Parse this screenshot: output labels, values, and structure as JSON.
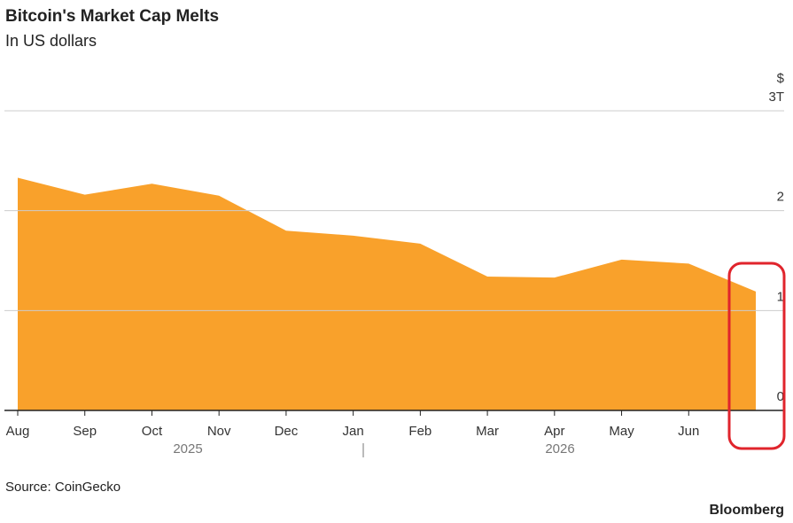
{
  "chart_data": {
    "type": "area",
    "title": "Bitcoin's Market Cap Melts",
    "subtitle": "In US dollars",
    "y_unit": "$",
    "x": [
      "2025-08",
      "2025-09",
      "2025-10",
      "2025-11",
      "2025-12",
      "2026-01",
      "2026-02",
      "2026-03",
      "2026-04",
      "2026-05",
      "2026-06",
      "2026-07"
    ],
    "series": [
      {
        "name": "Market cap",
        "color": "#f9a12b",
        "values": [
          2.33,
          2.16,
          2.27,
          2.15,
          1.8,
          1.75,
          1.67,
          1.34,
          1.33,
          1.51,
          1.47,
          1.19
        ]
      }
    ],
    "xlim": [
      "2025-08",
      "2026-07"
    ],
    "xticks": [
      {
        "value": "2025-08",
        "label": "Aug"
      },
      {
        "value": "2025-09",
        "label": "Sep"
      },
      {
        "value": "2025-10",
        "label": "Oct"
      },
      {
        "value": "2025-11",
        "label": "Nov"
      },
      {
        "value": "2025-12",
        "label": "Dec"
      },
      {
        "value": "2026-01",
        "label": "Jan"
      },
      {
        "value": "2026-02",
        "label": "Feb"
      },
      {
        "value": "2026-03",
        "label": "Mar"
      },
      {
        "value": "2026-04",
        "label": "Apr"
      },
      {
        "value": "2026-05",
        "label": "May"
      },
      {
        "value": "2026-06",
        "label": "Jun"
      }
    ],
    "x_group_labels": [
      "2025",
      "2026"
    ],
    "ylim": [
      0,
      3
    ],
    "yticks": [
      0,
      1,
      2,
      {
        "value": 3,
        "label": "3T"
      }
    ],
    "grid": true,
    "source": "Source: CoinGecko",
    "brand": "Bloomberg"
  }
}
